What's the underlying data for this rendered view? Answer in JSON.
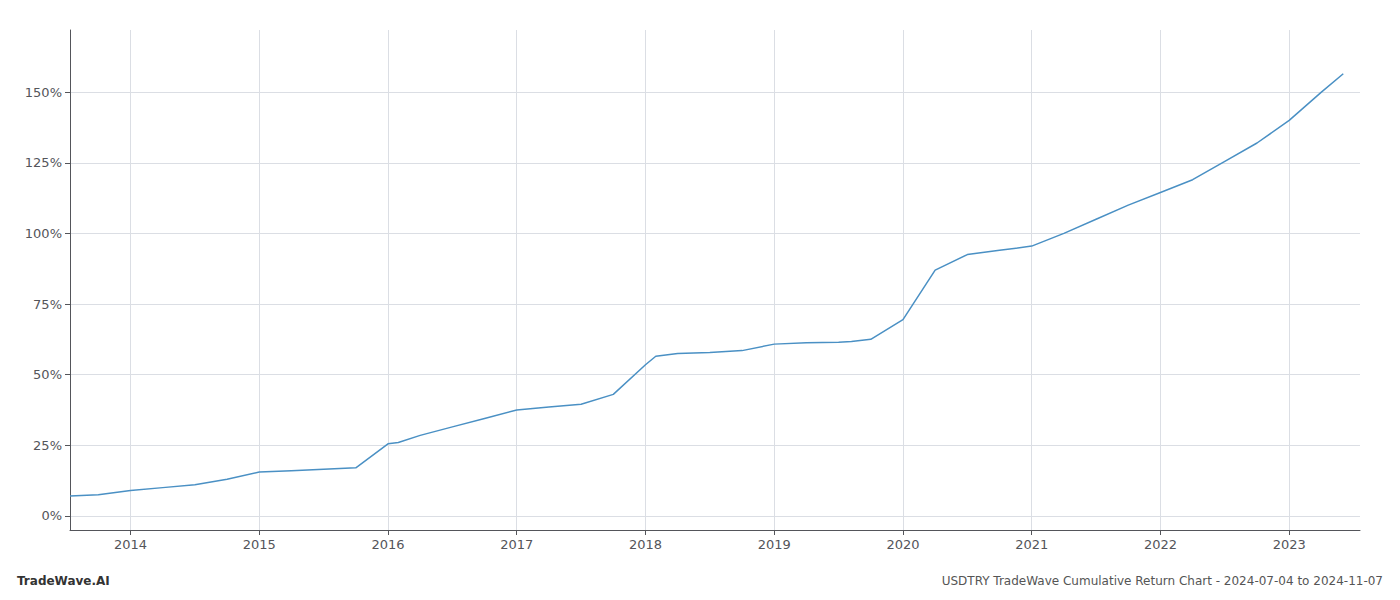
{
  "chart_data": {
    "type": "line",
    "annotations": [
      "TradeWave.AI",
      "USDTRY TradeWave Cumulative Return Chart - 2024-07-04 to 2024-11-07"
    ],
    "x": [
      2013.53,
      2013.75,
      2014.0,
      2014.25,
      2014.5,
      2014.75,
      2015.0,
      2015.25,
      2015.5,
      2015.75,
      2016.0,
      2016.08,
      2016.25,
      2016.5,
      2016.75,
      2017.0,
      2017.25,
      2017.5,
      2017.75,
      2018.0,
      2018.08,
      2018.25,
      2018.5,
      2018.75,
      2019.0,
      2019.25,
      2019.5,
      2019.6,
      2019.75,
      2020.0,
      2020.25,
      2020.5,
      2020.75,
      2021.0,
      2021.25,
      2021.5,
      2021.75,
      2022.0,
      2022.25,
      2022.5,
      2022.75,
      2023.0,
      2023.25,
      2023.42
    ],
    "values": [
      0.07,
      0.075,
      0.09,
      0.1,
      0.11,
      0.13,
      0.155,
      0.16,
      0.165,
      0.17,
      0.255,
      0.26,
      0.285,
      0.315,
      0.345,
      0.375,
      0.385,
      0.395,
      0.43,
      0.535,
      0.565,
      0.575,
      0.578,
      0.585,
      0.608,
      0.613,
      0.615,
      0.617,
      0.625,
      0.695,
      0.87,
      0.925,
      0.94,
      0.955,
      1.0,
      1.05,
      1.1,
      1.145,
      1.19,
      1.255,
      1.32,
      1.4,
      1.5,
      1.565
    ],
    "color": "#4a90c4",
    "xlim": [
      2013.53,
      2023.55
    ],
    "xticks": [
      2014,
      2015,
      2016,
      2017,
      2018,
      2019,
      2020,
      2021,
      2022,
      2023
    ],
    "ylim": [
      -0.05,
      1.72
    ],
    "yticks": [
      {
        "value": 0.0,
        "label": "0%"
      },
      {
        "value": 0.25,
        "label": "25%"
      },
      {
        "value": 0.5,
        "label": "50%"
      },
      {
        "value": 0.75,
        "label": "75%"
      },
      {
        "value": 1.0,
        "label": "100%"
      },
      {
        "value": 1.25,
        "label": "125%"
      },
      {
        "value": 1.5,
        "label": "150%"
      }
    ],
    "grid": true
  }
}
